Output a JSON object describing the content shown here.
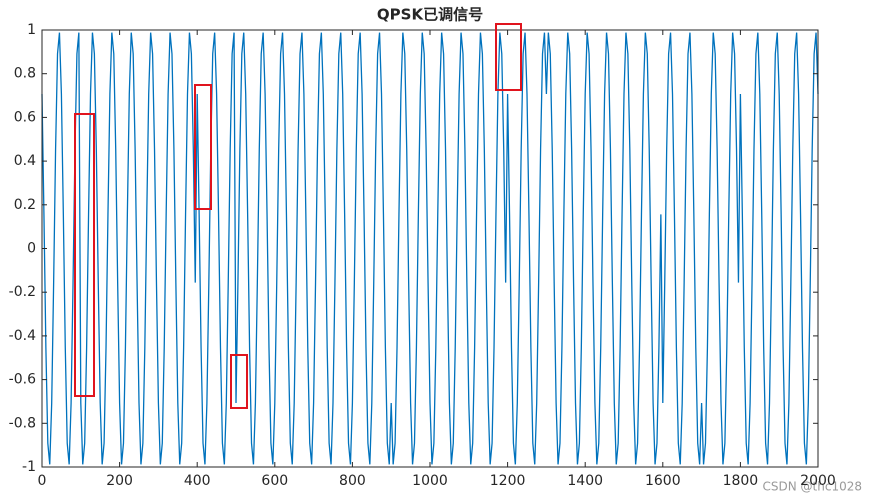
{
  "chart_data": {
    "type": "line",
    "title": "QPSK已调信号",
    "watermark": "CSDN @thc1028",
    "xlim": [
      0,
      2000
    ],
    "xticks": [
      0,
      200,
      400,
      600,
      800,
      1000,
      1200,
      1400,
      1600,
      1800,
      2000
    ],
    "ylim": [
      -1,
      1
    ],
    "yticks": [
      -1,
      -0.8,
      -0.6,
      -0.4,
      -0.2,
      0,
      0.2,
      0.4,
      0.6,
      0.8,
      1
    ],
    "x": [
      0,
      5,
      10,
      15,
      20,
      25,
      30,
      35,
      40,
      45,
      50,
      55,
      60,
      65,
      70,
      75,
      80,
      85,
      90,
      95,
      100,
      105,
      110,
      115,
      120,
      125,
      130,
      135,
      140,
      145,
      150,
      155,
      160,
      165,
      170,
      175,
      180,
      185,
      190,
      195,
      200,
      205,
      210,
      215,
      220,
      225,
      230,
      235,
      240,
      245,
      250,
      255,
      260,
      265,
      270,
      275,
      280,
      285,
      290,
      295,
      300,
      305,
      310,
      315,
      320,
      325,
      330,
      335,
      340,
      345,
      350,
      355,
      360,
      365,
      370,
      375,
      380,
      385,
      390,
      395,
      400,
      405,
      410,
      415,
      420,
      425,
      430,
      435,
      440,
      445,
      450,
      455,
      460,
      465,
      470,
      475,
      480,
      485,
      490,
      495,
      500,
      505,
      510,
      515,
      520,
      525,
      530,
      535,
      540,
      545,
      550,
      555,
      560,
      565,
      570,
      575,
      580,
      585,
      590,
      595,
      600,
      605,
      610,
      615,
      620,
      625,
      630,
      635,
      640,
      645,
      650,
      655,
      660,
      665,
      670,
      675,
      680,
      685,
      690,
      695,
      700,
      705,
      710,
      715,
      720,
      725,
      730,
      735,
      740,
      745,
      750,
      755,
      760,
      765,
      770,
      775,
      780,
      785,
      790,
      795,
      800,
      805,
      810,
      815,
      820,
      825,
      830,
      835,
      840,
      845,
      850,
      855,
      860,
      865,
      870,
      875,
      880,
      885,
      890,
      895,
      900,
      905,
      910,
      915,
      920,
      925,
      930,
      935,
      940,
      945,
      950,
      955,
      960,
      965,
      970,
      975,
      980,
      985,
      990,
      995,
      1000,
      1005,
      1010,
      1015,
      1020,
      1025,
      1030,
      1035,
      1040,
      1045,
      1050,
      1055,
      1060,
      1065,
      1070,
      1075,
      1080,
      1085,
      1090,
      1095,
      1100,
      1105,
      1110,
      1115,
      1120,
      1125,
      1130,
      1135,
      1140,
      1145,
      1150,
      1155,
      1160,
      1165,
      1170,
      1175,
      1180,
      1185,
      1190,
      1195,
      1200,
      1205,
      1210,
      1215,
      1220,
      1225,
      1230,
      1235,
      1240,
      1245,
      1250,
      1255,
      1260,
      1265,
      1270,
      1275,
      1280,
      1285,
      1290,
      1295,
      1300,
      1305,
      1310,
      1315,
      1320,
      1325,
      1330,
      1335,
      1340,
      1345,
      1350,
      1355,
      1360,
      1365,
      1370,
      1375,
      1380,
      1385,
      1390,
      1395,
      1400,
      1405,
      1410,
      1415,
      1420,
      1425,
      1430,
      1435,
      1440,
      1445,
      1450,
      1455,
      1460,
      1465,
      1470,
      1475,
      1480,
      1485,
      1490,
      1495,
      1500,
      1505,
      1510,
      1515,
      1520,
      1525,
      1530,
      1535,
      1540,
      1545,
      1550,
      1555,
      1560,
      1565,
      1570,
      1575,
      1580,
      1585,
      1590,
      1595,
      1600,
      1605,
      1610,
      1615,
      1620,
      1625,
      1630,
      1635,
      1640,
      1645,
      1650,
      1655,
      1660,
      1665,
      1670,
      1675,
      1680,
      1685,
      1690,
      1695,
      1700,
      1705,
      1710,
      1715,
      1720,
      1725,
      1730,
      1735,
      1740,
      1745,
      1750,
      1755,
      1760,
      1765,
      1770,
      1775,
      1780,
      1785,
      1790,
      1795,
      1800,
      1805,
      1810,
      1815,
      1820,
      1825,
      1830,
      1835,
      1840,
      1845,
      1850,
      1855,
      1860,
      1865,
      1870,
      1875,
      1880,
      1885,
      1890,
      1895,
      1900,
      1905,
      1910,
      1915,
      1920,
      1925,
      1930,
      1935,
      1940,
      1945,
      1950,
      1955,
      1960,
      1965,
      1970,
      1975,
      1980,
      1985,
      1990,
      1995,
      2000
    ],
    "series": [
      {
        "color": "#0072bd",
        "values": [
          0.707,
          0.156,
          -0.454,
          -0.891,
          -0.988,
          -0.707,
          -0.156,
          0.454,
          0.891,
          0.988,
          0.707,
          0.156,
          -0.454,
          -0.891,
          -0.988,
          -0.707,
          -0.156,
          0.454,
          0.891,
          0.988,
          -0.707,
          -0.988,
          -0.891,
          -0.454,
          0.156,
          0.707,
          0.988,
          0.891,
          0.454,
          -0.156,
          -0.707,
          -0.988,
          -0.891,
          -0.454,
          0.156,
          0.707,
          0.988,
          0.891,
          0.454,
          -0.156,
          -0.707,
          -0.988,
          -0.891,
          -0.454,
          0.156,
          0.707,
          0.988,
          0.891,
          0.454,
          -0.156,
          -0.707,
          -0.988,
          -0.891,
          -0.454,
          0.156,
          0.707,
          0.988,
          0.891,
          0.454,
          -0.156,
          -0.707,
          -0.988,
          -0.891,
          -0.454,
          0.156,
          0.707,
          0.988,
          0.891,
          0.454,
          -0.156,
          -0.707,
          -0.988,
          -0.891,
          -0.454,
          0.156,
          0.707,
          0.988,
          0.891,
          0.454,
          -0.156,
          0.707,
          0.156,
          -0.454,
          -0.891,
          -0.988,
          -0.707,
          -0.156,
          0.454,
          0.891,
          0.988,
          0.707,
          0.156,
          -0.454,
          -0.891,
          -0.988,
          -0.707,
          -0.156,
          0.454,
          0.891,
          0.988,
          -0.707,
          -0.156,
          0.454,
          0.891,
          0.988,
          0.707,
          0.156,
          -0.454,
          -0.891,
          -0.988,
          -0.707,
          -0.156,
          0.454,
          0.891,
          0.988,
          0.707,
          0.156,
          -0.454,
          -0.891,
          -0.988,
          -0.707,
          -0.156,
          0.454,
          0.891,
          0.988,
          0.707,
          0.156,
          -0.454,
          -0.891,
          -0.988,
          -0.707,
          -0.156,
          0.454,
          0.891,
          0.988,
          0.707,
          0.156,
          -0.454,
          -0.891,
          -0.988,
          -0.707,
          -0.156,
          0.454,
          0.891,
          0.988,
          0.707,
          0.156,
          -0.454,
          -0.891,
          -0.988,
          -0.707,
          -0.156,
          0.454,
          0.891,
          0.988,
          0.707,
          0.156,
          -0.454,
          -0.891,
          -0.988,
          -0.707,
          -0.156,
          0.454,
          0.891,
          0.988,
          0.707,
          0.156,
          -0.454,
          -0.891,
          -0.988,
          -0.707,
          -0.156,
          0.454,
          0.891,
          0.988,
          0.707,
          0.156,
          -0.454,
          -0.891,
          -0.988,
          -0.707,
          -0.988,
          -0.891,
          -0.454,
          0.156,
          0.707,
          0.988,
          0.891,
          0.454,
          -0.156,
          -0.707,
          -0.988,
          -0.891,
          -0.454,
          0.156,
          0.707,
          0.988,
          0.891,
          0.454,
          -0.156,
          -0.707,
          -0.988,
          -0.891,
          -0.454,
          0.156,
          0.707,
          0.988,
          0.891,
          0.454,
          -0.156,
          -0.707,
          -0.988,
          -0.891,
          -0.454,
          0.156,
          0.707,
          0.988,
          0.891,
          0.454,
          -0.156,
          -0.707,
          -0.988,
          -0.891,
          -0.454,
          0.156,
          0.707,
          0.988,
          0.891,
          0.454,
          -0.156,
          -0.707,
          -0.988,
          -0.891,
          -0.454,
          0.156,
          0.707,
          0.988,
          0.891,
          0.454,
          -0.156,
          0.707,
          0.156,
          -0.454,
          -0.891,
          -0.988,
          -0.707,
          -0.156,
          0.454,
          0.891,
          0.988,
          0.707,
          0.156,
          -0.454,
          -0.891,
          -0.988,
          -0.707,
          -0.156,
          0.454,
          0.891,
          0.988,
          0.707,
          0.988,
          0.891,
          0.454,
          -0.156,
          -0.707,
          -0.988,
          -0.891,
          -0.454,
          0.156,
          0.707,
          0.988,
          0.891,
          0.454,
          -0.156,
          -0.707,
          -0.988,
          -0.891,
          -0.454,
          0.156,
          0.707,
          0.988,
          0.891,
          0.454,
          -0.156,
          -0.707,
          -0.988,
          -0.891,
          -0.454,
          0.156,
          0.707,
          0.988,
          0.891,
          0.454,
          -0.156,
          -0.707,
          -0.988,
          -0.891,
          -0.454,
          0.156,
          0.707,
          0.988,
          0.891,
          0.454,
          -0.156,
          -0.707,
          -0.988,
          -0.891,
          -0.454,
          0.156,
          0.707,
          0.988,
          0.891,
          0.454,
          -0.156,
          -0.707,
          -0.988,
          -0.891,
          -0.454,
          0.156,
          -0.707,
          -0.156,
          0.454,
          0.891,
          0.988,
          0.707,
          0.156,
          -0.454,
          -0.891,
          -0.988,
          -0.707,
          -0.156,
          0.454,
          0.891,
          0.988,
          0.707,
          0.156,
          -0.454,
          -0.891,
          -0.988,
          -0.707,
          -0.988,
          -0.891,
          -0.454,
          0.156,
          0.707,
          0.988,
          0.891,
          0.454,
          -0.156,
          -0.707,
          -0.988,
          -0.891,
          -0.454,
          0.156,
          0.707,
          0.988,
          0.891,
          0.454,
          -0.156,
          0.707,
          0.156,
          -0.454,
          -0.891,
          -0.988,
          -0.707,
          -0.156,
          0.454,
          0.891,
          0.988,
          0.707,
          0.156,
          -0.454,
          -0.891,
          -0.988,
          -0.707,
          -0.156,
          0.454,
          0.891,
          0.988,
          0.707,
          0.156,
          -0.454,
          -0.891,
          -0.988,
          -0.707,
          -0.156,
          0.454,
          0.891,
          0.988,
          0.707,
          0.156,
          -0.454,
          -0.891,
          -0.988,
          -0.707,
          -0.156,
          0.454,
          0.891,
          0.988,
          0.707
        ]
      }
    ]
  }
}
